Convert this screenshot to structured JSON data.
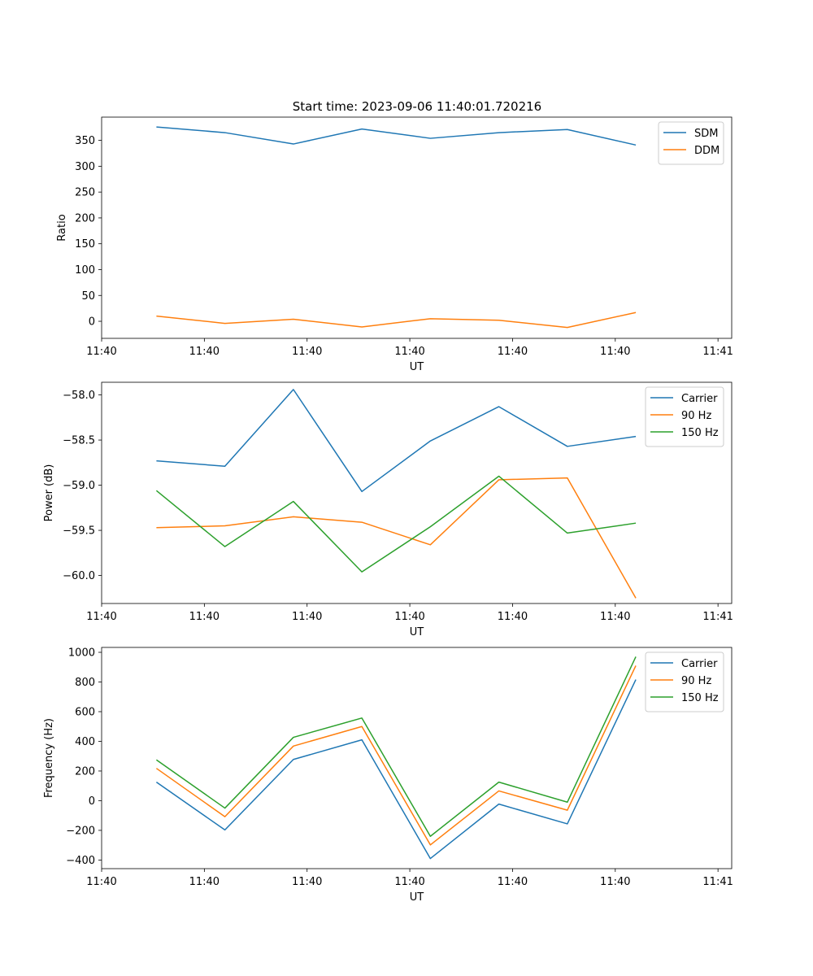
{
  "figure_title": "Start time: 2023-09-06 11:40:01.720216",
  "chart_data": [
    {
      "type": "line",
      "title": "Start time: 2023-09-06 11:40:01.720216",
      "xlabel": "UT",
      "ylabel": "Ratio",
      "x": [
        1,
        2,
        3,
        4,
        5,
        6,
        7,
        8
      ],
      "xlim": [
        0.2,
        9.4
      ],
      "xticks": [
        0.2,
        1.7,
        3.2,
        4.7,
        6.2,
        7.7,
        9.2
      ],
      "xtick_labels": [
        "11:40",
        "11:40",
        "11:40",
        "11:40",
        "11:40",
        "11:40",
        "11:41"
      ],
      "ylim": [
        -33,
        395
      ],
      "yticks": [
        0,
        50,
        100,
        150,
        200,
        250,
        300,
        350
      ],
      "ytick_labels": [
        "0",
        "50",
        "100",
        "150",
        "200",
        "250",
        "300",
        "350"
      ],
      "legend": "top-right",
      "series": [
        {
          "name": "SDM",
          "color": "#1f77b4",
          "values": [
            376,
            365,
            343,
            372,
            354,
            365,
            371,
            341
          ]
        },
        {
          "name": "DDM",
          "color": "#ff7f0e",
          "values": [
            10,
            -4,
            4,
            -11,
            5,
            2,
            -12,
            17
          ]
        }
      ]
    },
    {
      "type": "line",
      "title": "",
      "xlabel": "UT",
      "ylabel": "Power (dB)",
      "x": [
        1,
        2,
        3,
        4,
        5,
        6,
        7,
        8
      ],
      "xlim": [
        0.2,
        9.4
      ],
      "xticks": [
        0.2,
        1.7,
        3.2,
        4.7,
        6.2,
        7.7,
        9.2
      ],
      "xtick_labels": [
        "11:40",
        "11:40",
        "11:40",
        "11:40",
        "11:40",
        "11:40",
        "11:41"
      ],
      "ylim": [
        -60.31,
        -57.86
      ],
      "yticks": [
        -58.0,
        -58.5,
        -59.0,
        -59.5,
        -60.0
      ],
      "ytick_labels": [
        "−58.0",
        "−58.5",
        "−59.0",
        "−59.5",
        "−60.0"
      ],
      "legend": "top-right",
      "series": [
        {
          "name": "Carrier",
          "color": "#1f77b4",
          "values": [
            -58.73,
            -58.79,
            -57.94,
            -59.07,
            -58.51,
            -58.13,
            -58.57,
            -58.46
          ]
        },
        {
          "name": "90 Hz",
          "color": "#ff7f0e",
          "values": [
            -59.47,
            -59.45,
            -59.35,
            -59.41,
            -59.66,
            -58.94,
            -58.92,
            -60.25
          ]
        },
        {
          "name": "150 Hz",
          "color": "#2ca02c",
          "values": [
            -59.06,
            -59.68,
            -59.18,
            -59.96,
            -59.46,
            -58.9,
            -59.53,
            -59.42
          ]
        }
      ]
    },
    {
      "type": "line",
      "title": "",
      "xlabel": "UT",
      "ylabel": "Frequency (Hz)",
      "x": [
        1,
        2,
        3,
        4,
        5,
        6,
        7,
        8
      ],
      "xlim": [
        0.2,
        9.4
      ],
      "xticks": [
        0.2,
        1.7,
        3.2,
        4.7,
        6.2,
        7.7,
        9.2
      ],
      "xtick_labels": [
        "11:40",
        "11:40",
        "11:40",
        "11:40",
        "11:40",
        "11:40",
        "11:41"
      ],
      "ylim": [
        -458,
        1033
      ],
      "yticks": [
        -400,
        -200,
        0,
        200,
        400,
        600,
        800,
        1000
      ],
      "ytick_labels": [
        "−400",
        "−200",
        "0",
        "200",
        "400",
        "600",
        "800",
        "1000"
      ],
      "legend": "top-right",
      "series": [
        {
          "name": "Carrier",
          "color": "#1f77b4",
          "values": [
            125,
            -197,
            278,
            410,
            -390,
            -23,
            -156,
            816
          ]
        },
        {
          "name": "90 Hz",
          "color": "#ff7f0e",
          "values": [
            218,
            -108,
            368,
            500,
            -298,
            66,
            -64,
            910
          ]
        },
        {
          "name": "150 Hz",
          "color": "#2ca02c",
          "values": [
            275,
            -50,
            427,
            557,
            -240,
            125,
            -10,
            970
          ]
        }
      ]
    }
  ]
}
